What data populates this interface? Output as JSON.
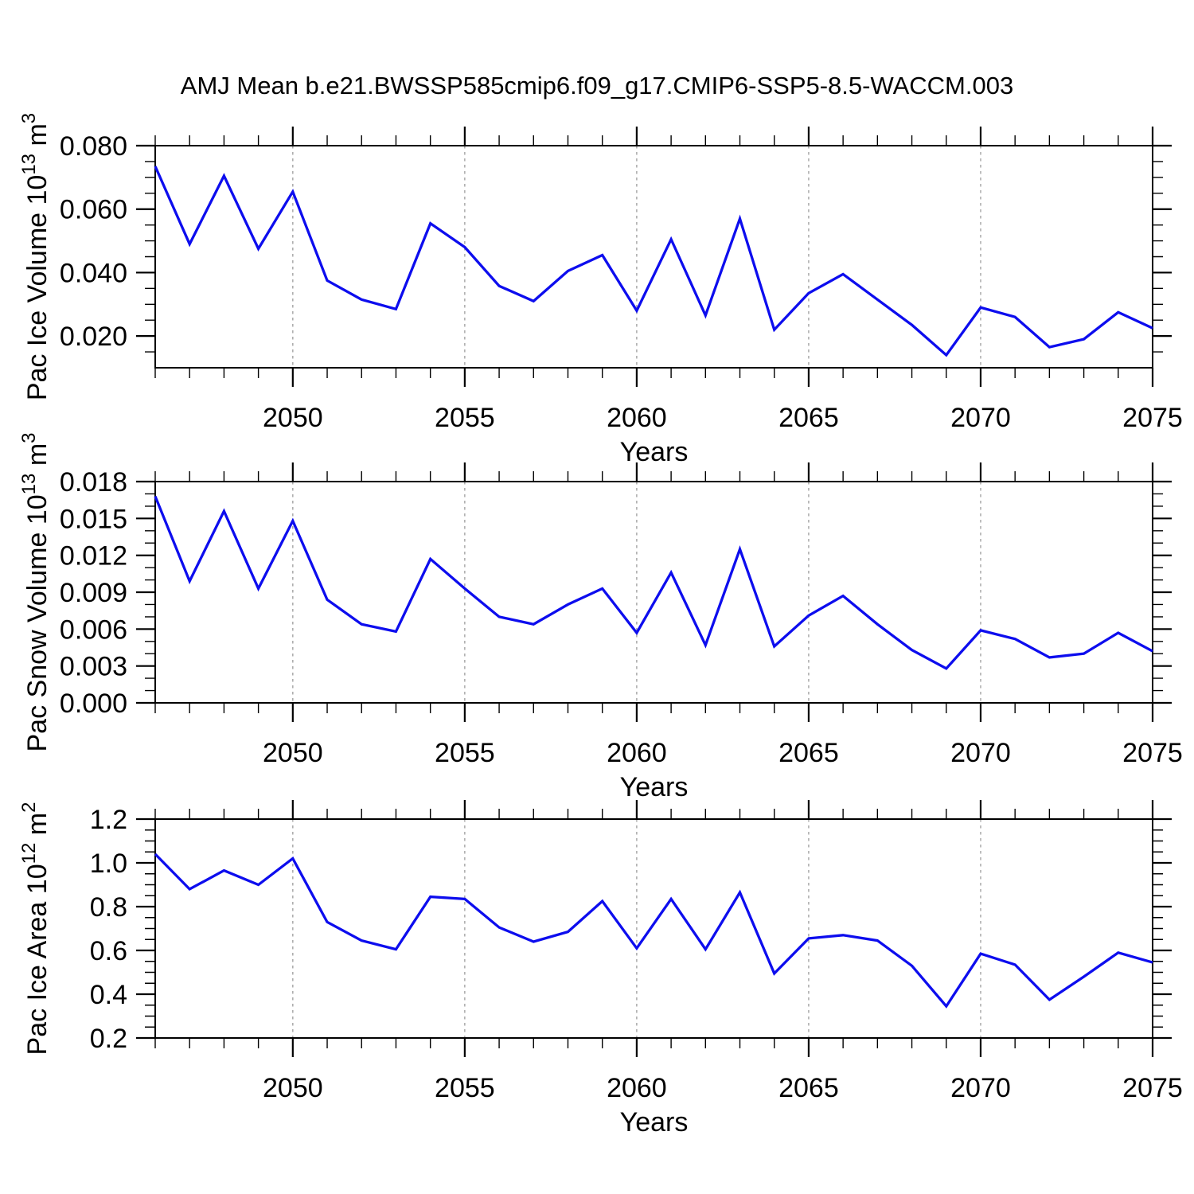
{
  "title": "AMJ Mean b.e21.BWSSP585cmip6.f09_g17.CMIP6-SSP5-8.5-WACCM.003",
  "figure": {
    "background": "#ffffff",
    "line_color": "#0d0dee",
    "grid_color": "#a3a3a3",
    "axis_color": "#000000"
  },
  "x_axis": {
    "label": "Years",
    "start": 2046,
    "end": 2075,
    "years": [
      2046,
      2047,
      2048,
      2049,
      2050,
      2051,
      2052,
      2053,
      2054,
      2055,
      2056,
      2057,
      2058,
      2059,
      2060,
      2061,
      2062,
      2063,
      2064,
      2065,
      2066,
      2067,
      2068,
      2069,
      2070,
      2071,
      2072,
      2073,
      2074,
      2075
    ],
    "major_tick_labels": [
      "2050",
      "2055",
      "2060",
      "2065",
      "2070",
      "2075"
    ],
    "major_ticks": [
      2050,
      2055,
      2060,
      2065,
      2070,
      2075
    ],
    "gridlines": [
      2050,
      2055,
      2060,
      2065,
      2070
    ],
    "minor_step": 1
  },
  "chart_data": [
    {
      "type": "line",
      "name": "pac-ice-volume",
      "ylabel": "Pac Ice Volume 10^13 m^3",
      "ylabel_parts": [
        {
          "text": "Pac Ice Volume 10"
        },
        {
          "text": "13",
          "sup": true
        },
        {
          "text": " m"
        },
        {
          "text": "3",
          "sup": true
        }
      ],
      "xlabel": "Years",
      "ylim": [
        0.01,
        0.08
      ],
      "ytick_values": [
        0.02,
        0.04,
        0.06,
        0.08
      ],
      "ytick_labels": [
        "0.020",
        "0.040",
        "0.060",
        "0.080"
      ],
      "y_minor_step": 0.005,
      "grid": true,
      "legend": "none",
      "values": [
        0.0735,
        0.049,
        0.0705,
        0.0475,
        0.0655,
        0.0375,
        0.0315,
        0.0285,
        0.0555,
        0.048,
        0.0358,
        0.031,
        0.0405,
        0.0455,
        0.028,
        0.0505,
        0.0265,
        0.057,
        0.022,
        0.0335,
        0.0395,
        0.0315,
        0.0235,
        0.014,
        0.029,
        0.026,
        0.0165,
        0.019,
        0.0275,
        0.0225
      ]
    },
    {
      "type": "line",
      "name": "pac-snow-volume",
      "ylabel": "Pac Snow Volume 10^13 m^3",
      "ylabel_parts": [
        {
          "text": "Pac Snow Volume 10"
        },
        {
          "text": "13",
          "sup": true
        },
        {
          "text": " m"
        },
        {
          "text": "3",
          "sup": true
        }
      ],
      "xlabel": "Years",
      "ylim": [
        0.0,
        0.018
      ],
      "ytick_values": [
        0.0,
        0.003,
        0.006,
        0.009,
        0.012,
        0.015,
        0.018
      ],
      "ytick_labels": [
        "0.000",
        "0.003",
        "0.006",
        "0.009",
        "0.012",
        "0.015",
        "0.018"
      ],
      "y_minor_step": 0.001,
      "grid": true,
      "legend": "none",
      "values": [
        0.0168,
        0.0099,
        0.0156,
        0.0093,
        0.0148,
        0.0084,
        0.0064,
        0.0058,
        0.0117,
        0.0093,
        0.007,
        0.0064,
        0.008,
        0.0093,
        0.0057,
        0.0106,
        0.0047,
        0.0125,
        0.0046,
        0.0071,
        0.0087,
        0.0064,
        0.0043,
        0.0028,
        0.0059,
        0.0052,
        0.0037,
        0.004,
        0.0057,
        0.0042
      ]
    },
    {
      "type": "line",
      "name": "pac-ice-area",
      "ylabel": "Pac Ice Area 10^12 m^2",
      "ylabel_parts": [
        {
          "text": "Pac Ice Area 10"
        },
        {
          "text": "12",
          "sup": true
        },
        {
          "text": " m"
        },
        {
          "text": "2",
          "sup": true
        }
      ],
      "xlabel": "Years",
      "ylim": [
        0.2,
        1.2
      ],
      "ytick_values": [
        0.2,
        0.4,
        0.6,
        0.8,
        1.0,
        1.2
      ],
      "ytick_labels": [
        "0.2",
        "0.4",
        "0.6",
        "0.8",
        "1.0",
        "1.2"
      ],
      "y_minor_step": 0.05,
      "grid": true,
      "legend": "none",
      "values": [
        1.04,
        0.88,
        0.965,
        0.9,
        1.02,
        0.73,
        0.645,
        0.605,
        0.845,
        0.835,
        0.705,
        0.64,
        0.685,
        0.825,
        0.61,
        0.835,
        0.605,
        0.865,
        0.495,
        0.655,
        0.67,
        0.645,
        0.53,
        0.345,
        0.585,
        0.535,
        0.375,
        0.48,
        0.59,
        0.545
      ]
    }
  ]
}
